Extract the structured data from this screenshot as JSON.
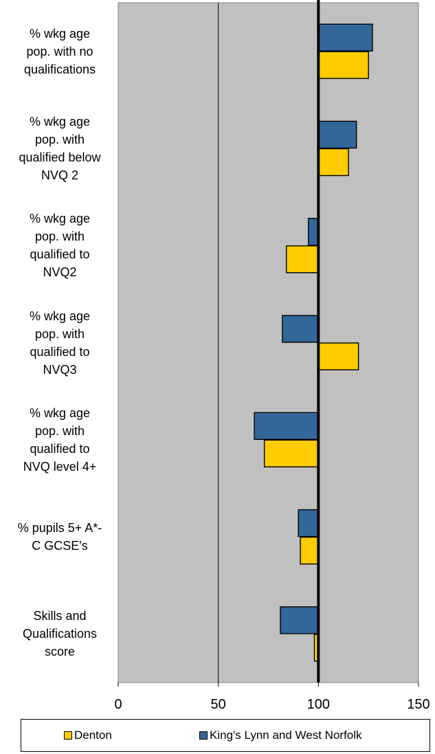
{
  "chart_data": {
    "type": "bar",
    "orientation": "horizontal",
    "categories": [
      "% wkg age pop. with no qualifications",
      "% wkg age pop. with qualified below NVQ 2",
      "% wkg age pop. with qualified to NVQ2",
      "% wkg age pop. with qualified to NVQ3",
      "% wkg age pop. with qualified to NVQ level 4+",
      "% pupils 5+ A*-C GCSE's",
      "Skills and Qualifications score"
    ],
    "category_lines": [
      [
        "% wkg age",
        "pop. with no",
        "qualifications"
      ],
      [
        "% wkg age",
        "pop. with",
        "qualified below",
        "NVQ 2"
      ],
      [
        "% wkg age",
        "pop. with",
        "qualified to",
        "NVQ2"
      ],
      [
        "% wkg age",
        "pop. with",
        "qualified to",
        "NVQ3"
      ],
      [
        "% wkg age",
        "pop. with",
        "qualified to",
        "NVQ level 4+"
      ],
      [
        "% pupils 5+ A*-",
        "C GCSE's"
      ],
      [
        "Skills and",
        "Qualifications",
        "score"
      ]
    ],
    "series": [
      {
        "name": "King's Lynn and West Norfolk",
        "color": "#336699",
        "values": [
          127,
          119,
          95,
          82,
          68,
          90,
          81
        ]
      },
      {
        "name": "Denton",
        "color": "#FFCC00",
        "values": [
          125,
          115,
          84,
          120,
          73,
          91,
          98
        ]
      }
    ],
    "xlim": [
      0,
      150
    ],
    "xticks": [
      "0",
      "50",
      "100",
      "150"
    ],
    "reference_value": 100,
    "grid": true,
    "plot_background": "#C0C0C0",
    "legend_position": "bottom"
  }
}
